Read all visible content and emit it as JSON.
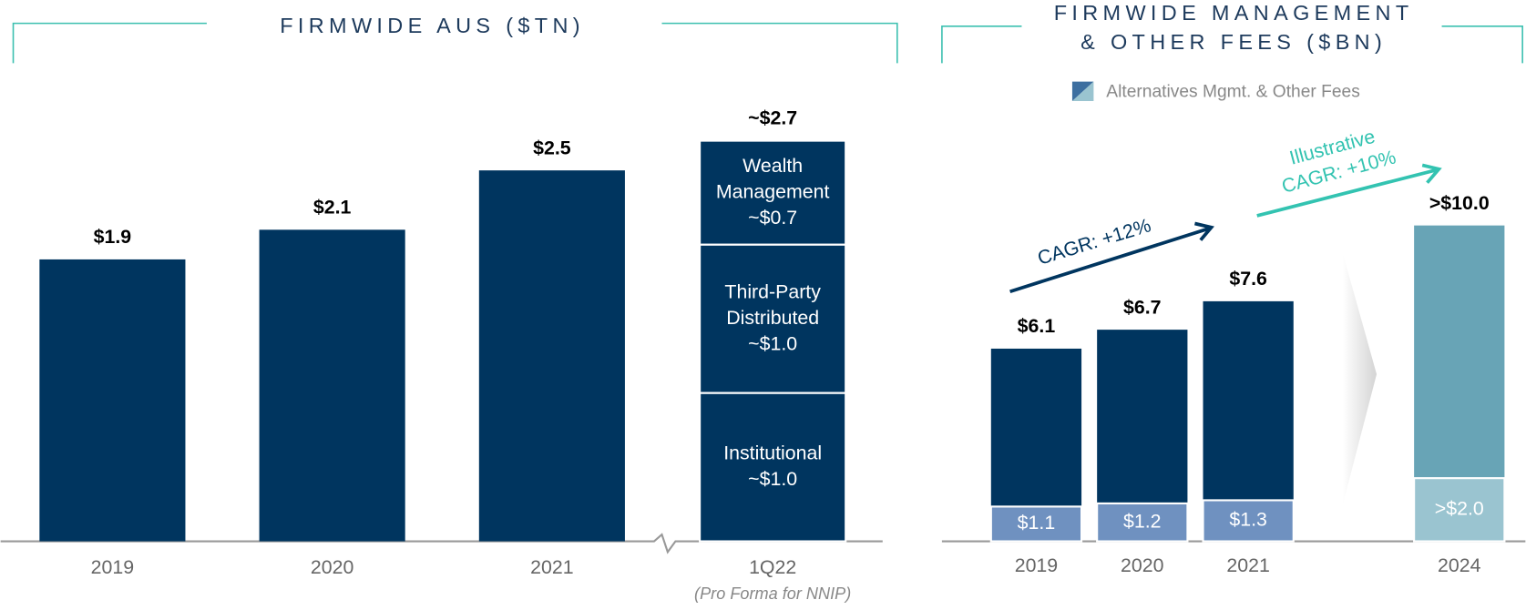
{
  "chart_data": [
    {
      "type": "bar",
      "title": "FIRMWIDE AUS ($TN)",
      "categories": [
        "2019",
        "2020",
        "2021",
        "1Q22"
      ],
      "values": [
        1.9,
        2.1,
        2.5,
        2.7
      ],
      "value_labels": [
        "$1.9",
        "$2.1",
        "$2.5",
        "~$2.7"
      ],
      "x_note": "(Pro Forma for NNIP)",
      "breakdown": [
        {
          "name": "Institutional",
          "value": 1.0,
          "value_label": "~$1.0"
        },
        {
          "name": "Third-Party Distributed",
          "value": 1.0,
          "value_label": "~$1.0"
        },
        {
          "name": "Wealth Management",
          "value": 0.7,
          "value_label": "~$0.7"
        }
      ],
      "color": "#00355f",
      "ylim": [
        0,
        3
      ]
    },
    {
      "type": "bar",
      "title": "FIRMWIDE MANAGEMENT & OTHER FEES ($BN)",
      "categories": [
        "2019",
        "2020",
        "2021",
        "2024"
      ],
      "totals": [
        6.1,
        6.7,
        7.6,
        10.0
      ],
      "total_labels": [
        "$6.1",
        "$6.7",
        "$7.6",
        ">$10.0"
      ],
      "total_colors": [
        "#00355f",
        "#00355f",
        "#00355f",
        "#68a4b6"
      ],
      "series": [
        {
          "name": "Alternatives Mgmt. & Other Fees",
          "color": "#6f91c0",
          "colors": [
            "#6f91c0",
            "#6f91c0",
            "#6f91c0",
            "#9ac4d0"
          ],
          "values": [
            1.1,
            1.2,
            1.3,
            2.0
          ],
          "value_labels": [
            "$1.1",
            "$1.2",
            "$1.3",
            ">$2.0"
          ]
        }
      ],
      "annotations": [
        "CAGR: +12%",
        "Illustrative CAGR: +10%"
      ],
      "ylim": [
        0,
        12
      ]
    }
  ]
}
